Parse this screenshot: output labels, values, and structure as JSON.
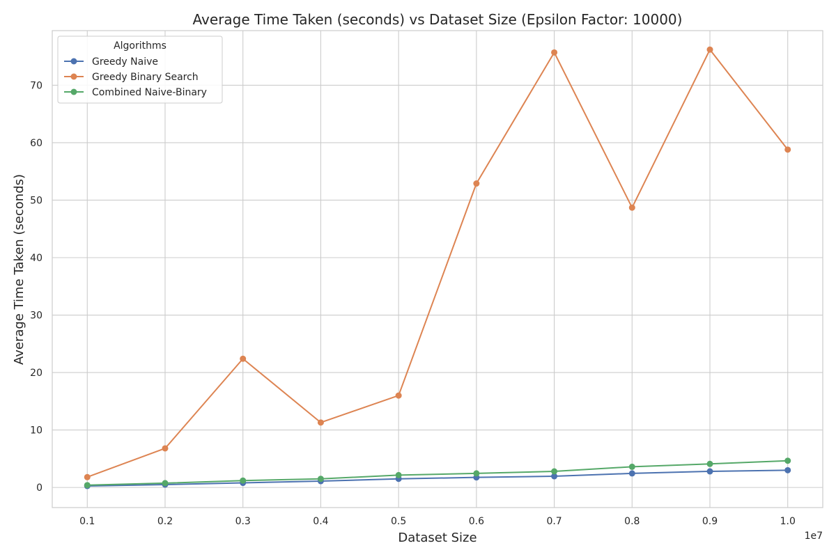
{
  "chart_data": {
    "type": "line",
    "title": "Average Time Taken (seconds) vs Dataset Size (Epsilon Factor: 10000)",
    "xlabel": "Dataset Size",
    "ylabel": "Average Time Taken (seconds)",
    "x_offset_label": "1e7",
    "x": [
      0.1,
      0.2,
      0.3,
      0.4,
      0.5,
      0.6,
      0.7,
      0.8,
      0.9,
      1.0
    ],
    "x_tick_labels": [
      "0.1",
      "0.2",
      "0.3",
      "0.4",
      "0.5",
      "0.6",
      "0.7",
      "0.8",
      "0.9",
      "1.0"
    ],
    "y_ticks": [
      0,
      10,
      20,
      30,
      40,
      50,
      60,
      70
    ],
    "y_tick_labels": [
      "0",
      "10",
      "20",
      "30",
      "40",
      "50",
      "60",
      "70"
    ],
    "xlim": [
      0.055,
      1.045
    ],
    "ylim": [
      -3.5,
      79.5
    ],
    "grid": true,
    "legend": {
      "title": "Algorithms",
      "placement": "top-left"
    },
    "series": [
      {
        "name": "Greedy Naive",
        "color": "#4c72b0",
        "values": [
          0.25,
          0.5,
          0.8,
          1.1,
          1.5,
          1.75,
          1.95,
          2.45,
          2.8,
          3.0
        ]
      },
      {
        "name": "Greedy Binary Search",
        "color": "#dd8452",
        "values": [
          1.8,
          6.8,
          22.4,
          11.3,
          16.0,
          52.9,
          75.7,
          48.7,
          76.2,
          58.8
        ]
      },
      {
        "name": "Combined Naive-Binary",
        "color": "#55a868",
        "values": [
          0.4,
          0.75,
          1.2,
          1.5,
          2.15,
          2.45,
          2.8,
          3.6,
          4.1,
          4.65
        ]
      }
    ]
  }
}
